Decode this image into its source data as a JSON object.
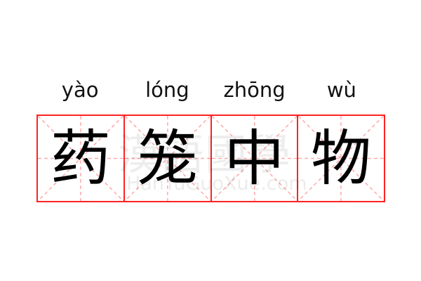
{
  "entries": [
    {
      "pinyin": "yào",
      "char": "药"
    },
    {
      "pinyin": "lóng",
      "char": "笼"
    },
    {
      "pinyin": "zhōng",
      "char": "中"
    },
    {
      "pinyin": "wù",
      "char": "物"
    }
  ],
  "watermark": {
    "chars": "漢語國學",
    "domain": "HanYuGuoXue.com"
  },
  "colors": {
    "grid": "#ff2222",
    "guide": "#ffaaaa"
  }
}
